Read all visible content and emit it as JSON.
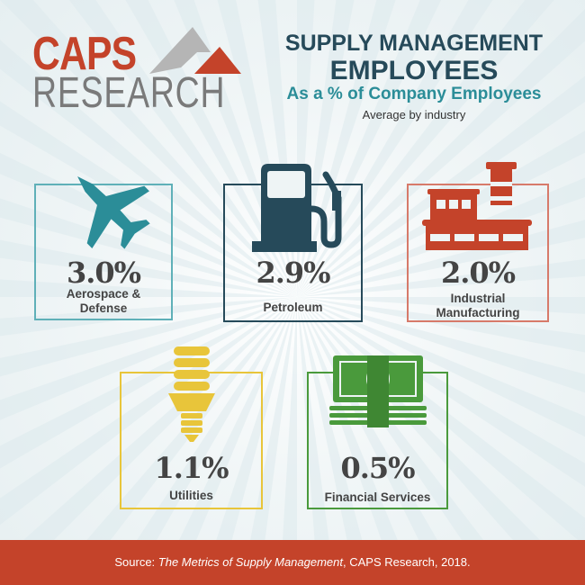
{
  "logo": {
    "line1": "CAPS",
    "line2": "RESEARCH"
  },
  "header": {
    "title_line1": "SUPPLY MANAGEMENT",
    "title_line2": "EMPLOYEES",
    "subtitle": "As a % of Company Employees",
    "note": "Average by industry"
  },
  "industries": [
    {
      "value": "3.0%",
      "label_line1": "Aerospace &",
      "label_line2": "Defense",
      "icon": "fighter-jet-icon",
      "color": "#2b8d98"
    },
    {
      "value": "2.9%",
      "label_line1": "Petroleum",
      "label_line2": "",
      "icon": "fuel-pump-icon",
      "color": "#264a5a"
    },
    {
      "value": "2.0%",
      "label_line1": "Industrial",
      "label_line2": "Manufacturing",
      "icon": "factory-icon",
      "color": "#c4432a"
    },
    {
      "value": "1.1%",
      "label_line1": "Utilities",
      "label_line2": "",
      "icon": "light-bulb-icon",
      "color": "#e8c53a"
    },
    {
      "value": "0.5%",
      "label_line1": "Financial Services",
      "label_line2": "",
      "icon": "money-stack-icon",
      "color": "#4a9a3c"
    }
  ],
  "footer": {
    "prefix": "Source: ",
    "title": "The Metrics of Supply Management",
    "suffix": ", CAPS Research, 2018."
  }
}
